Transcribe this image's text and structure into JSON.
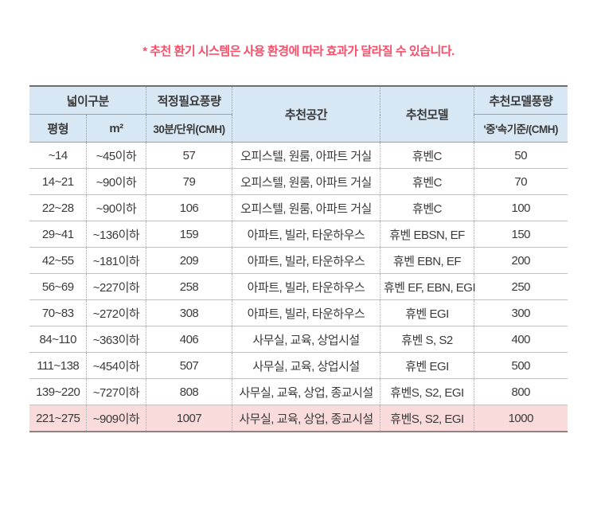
{
  "note": "* 추천 환기 시스템은 사용 환경에 따라 효과가 달라질 수 있습니다.",
  "colors": {
    "note_text": "#fb4d68",
    "header_bg": "#d7e7f3",
    "highlight_row_bg": "#fadbdb",
    "table_top_border": "#6f6f6f",
    "row_separator": "#c2c2c2",
    "text": "#3a3a3a"
  },
  "table": {
    "header": {
      "area_group": "넓이구분",
      "pyeong": "평형",
      "sqm": "m²",
      "required_airflow": "적정필요풍량",
      "required_airflow_unit": "30분/단위(CMH)",
      "space": "추천공간",
      "model": "추천모델",
      "model_airflow": "추천모델풍량",
      "model_airflow_unit": "'중'속기준/(CMH)"
    },
    "rows": [
      {
        "pyeong": "~14",
        "sqm": "~45이하",
        "cmh": "57",
        "space": "오피스텔, 원룸, 아파트 거실",
        "model": "휴벤C",
        "model_cmh": "50"
      },
      {
        "pyeong": "14~21",
        "sqm": "~90이하",
        "cmh": "79",
        "space": "오피스텔, 원룸, 아파트 거실",
        "model": "휴벤C",
        "model_cmh": "70"
      },
      {
        "pyeong": "22~28",
        "sqm": "~90이하",
        "cmh": "106",
        "space": "오피스텔, 원룸, 아파트 거실",
        "model": "휴벤C",
        "model_cmh": "100"
      },
      {
        "pyeong": "29~41",
        "sqm": "~136이하",
        "cmh": "159",
        "space": "아파트, 빌라, 타운하우스",
        "model": "휴벤 EBSN, EF",
        "model_cmh": "150"
      },
      {
        "pyeong": "42~55",
        "sqm": "~181이하",
        "cmh": "209",
        "space": "아파트, 빌라, 타운하우스",
        "model": "휴벤 EBN, EF",
        "model_cmh": "200"
      },
      {
        "pyeong": "56~69",
        "sqm": "~227이하",
        "cmh": "258",
        "space": "아파트, 빌라, 타운하우스",
        "model": "휴벤 EF, EBN, EGI",
        "model_cmh": "250"
      },
      {
        "pyeong": "70~83",
        "sqm": "~272이하",
        "cmh": "308",
        "space": "아파트, 빌라, 타운하우스",
        "model": "휴벤 EGI",
        "model_cmh": "300"
      },
      {
        "pyeong": "84~110",
        "sqm": "~363이하",
        "cmh": "406",
        "space": "사무실, 교육, 상업시설",
        "model": "휴벤 S, S2",
        "model_cmh": "400"
      },
      {
        "pyeong": "111~138",
        "sqm": "~454이하",
        "cmh": "507",
        "space": "사무실, 교육, 상업시설",
        "model": "휴벤 EGI",
        "model_cmh": "500"
      },
      {
        "pyeong": "139~220",
        "sqm": "~727이하",
        "cmh": "808",
        "space": "사무실, 교육, 상업, 종교시설",
        "model": "휴벤S, S2, EGI",
        "model_cmh": "800"
      },
      {
        "pyeong": "221~275",
        "sqm": "~909이하",
        "cmh": "1007",
        "space": "사무실, 교육, 상업, 종교시설",
        "model": "휴벤S, S2, EGI",
        "model_cmh": "1000"
      }
    ]
  }
}
